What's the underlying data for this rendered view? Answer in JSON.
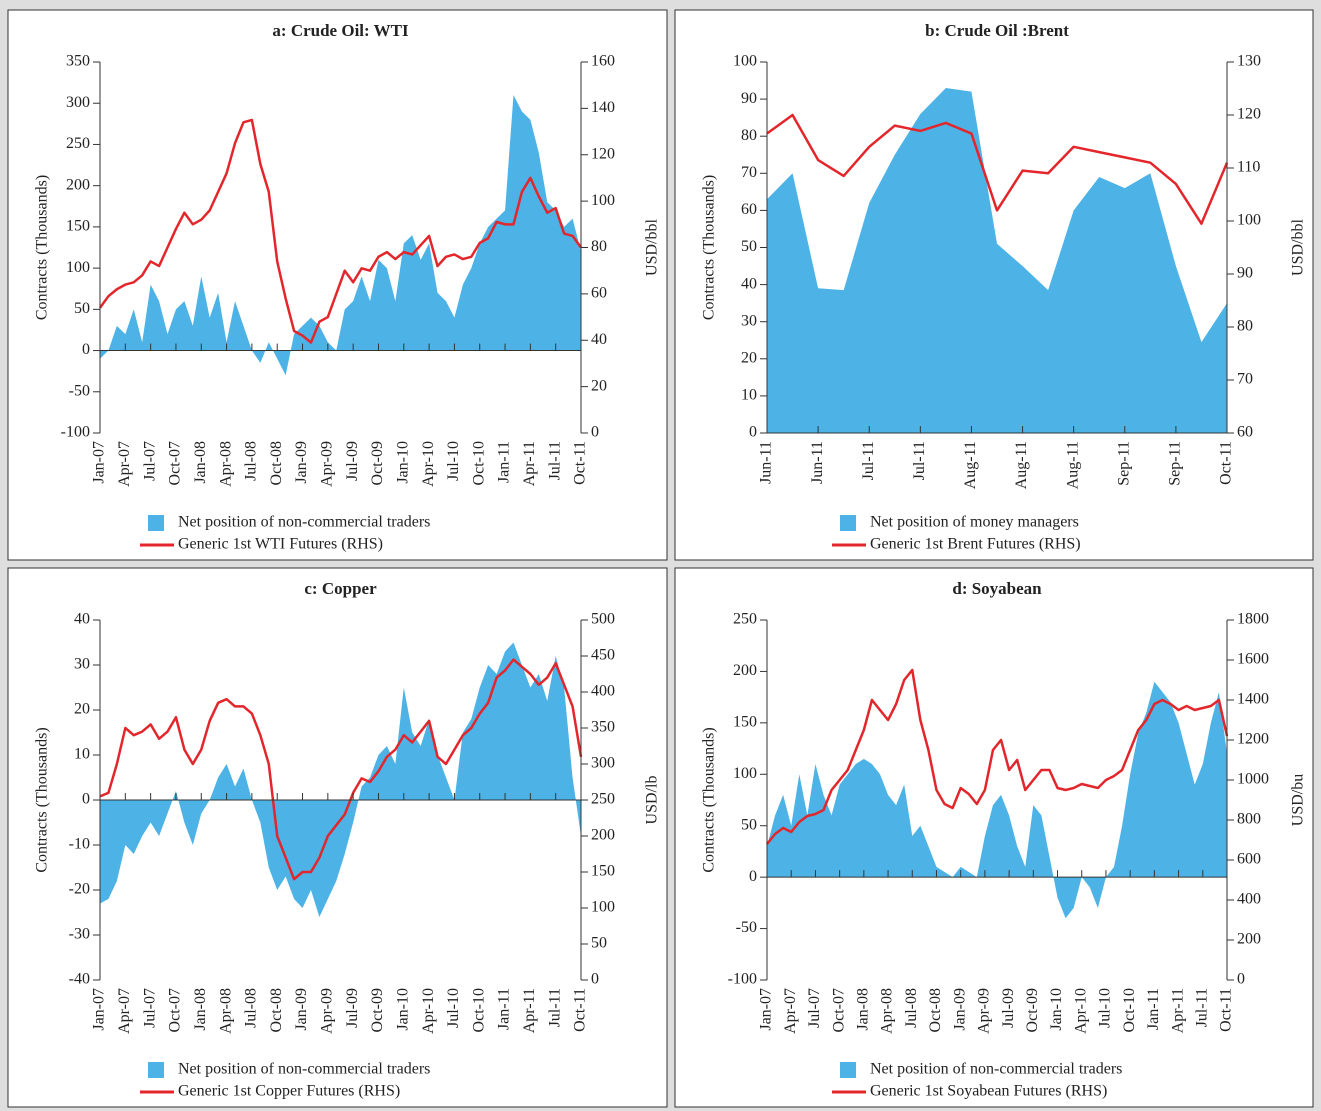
{
  "chart_data": [
    {
      "type": "area",
      "title": "a: Crude Oil: WTI",
      "y_label": "Contracts (Thousands)",
      "y2_label": "USD/bbl",
      "categories": [
        "Jan-07",
        null,
        null,
        "Apr-07",
        null,
        null,
        "Jul-07",
        null,
        null,
        "Oct-07",
        null,
        null,
        "Jan-08",
        null,
        null,
        "Apr-08",
        null,
        null,
        "Jul-08",
        null,
        null,
        "Oct-08",
        null,
        null,
        "Jan-09",
        null,
        null,
        "Apr-09",
        null,
        null,
        "Jul-09",
        null,
        null,
        "Oct-09",
        null,
        null,
        "Jan-10",
        null,
        null,
        "Apr-10",
        null,
        null,
        "Jul-10",
        null,
        null,
        "Oct-10",
        null,
        null,
        "Jan-11",
        null,
        null,
        "Apr-11",
        null,
        null,
        "Jul-11",
        null,
        null,
        "Oct-11"
      ],
      "ylim": [
        -100,
        350
      ],
      "yticks": [
        -100,
        -50,
        0,
        50,
        100,
        150,
        200,
        250,
        300,
        350
      ],
      "y2lim": [
        0,
        160
      ],
      "y2ticks": [
        0,
        20,
        40,
        60,
        80,
        100,
        120,
        140,
        160
      ],
      "series": [
        {
          "name": "Net position of non-commercial traders",
          "color": "#4db3e6",
          "values": [
            -10,
            0,
            30,
            20,
            50,
            10,
            80,
            60,
            20,
            50,
            60,
            30,
            90,
            40,
            70,
            10,
            60,
            30,
            0,
            -15,
            10,
            -10,
            -30,
            20,
            30,
            40,
            30,
            10,
            0,
            50,
            60,
            90,
            60,
            110,
            100,
            60,
            130,
            140,
            110,
            130,
            70,
            60,
            40,
            80,
            100,
            130,
            150,
            160,
            170,
            310,
            290,
            280,
            240,
            180,
            170,
            150,
            160,
            120
          ]
        },
        {
          "name": "Generic 1st WTI Futures (RHS)",
          "color": "#e3262b",
          "axis": "y2",
          "values": [
            54,
            59,
            62,
            64,
            65,
            68,
            74,
            72,
            80,
            88,
            95,
            90,
            92,
            96,
            104,
            112,
            125,
            134,
            135,
            116,
            104,
            74,
            58,
            44,
            42,
            39,
            48,
            50,
            60,
            70,
            65,
            71,
            70,
            76,
            78,
            75,
            78,
            77,
            81,
            85,
            72,
            76,
            77,
            75,
            76,
            82,
            84,
            91,
            90,
            90,
            104,
            110,
            102,
            95,
            97,
            86,
            85,
            80
          ]
        }
      ]
    },
    {
      "type": "area",
      "title": "b: Crude Oil :Brent",
      "y_label": "Contracts (Thousands)",
      "y2_label": "USD/bbl",
      "categories": [
        "Jun-11",
        null,
        "Jun-11",
        null,
        "Jul-11",
        null,
        "Jul-11",
        null,
        "Aug-11",
        null,
        "Aug-11",
        null,
        "Aug-11",
        null,
        "Sep-11",
        null,
        "Sep-11",
        null,
        "Oct-11"
      ],
      "ylim": [
        0,
        100
      ],
      "yticks": [
        0,
        10,
        20,
        30,
        40,
        50,
        60,
        70,
        80,
        90,
        100
      ],
      "y2lim": [
        60,
        130
      ],
      "y2ticks": [
        60,
        70,
        80,
        90,
        100,
        110,
        120,
        130
      ],
      "series": [
        {
          "name": "Net position of money managers",
          "color": "#4db3e6",
          "values": [
            63,
            70,
            39,
            38.5,
            62,
            75,
            86,
            93,
            92,
            51,
            45,
            38.5,
            60,
            69,
            66,
            70,
            45,
            24.5,
            35
          ]
        },
        {
          "name": "Generic 1st Brent Futures (RHS)",
          "color": "#e3262b",
          "axis": "y2",
          "values": [
            116.5,
            120,
            111.5,
            108.5,
            114,
            118,
            117,
            118.5,
            116.5,
            102,
            109.5,
            109,
            114,
            113,
            112,
            111,
            107,
            99.5,
            111
          ]
        }
      ]
    },
    {
      "type": "area",
      "title": "c: Copper",
      "y_label": "Contracts (Thousands)",
      "y2_label": "USD/lb",
      "categories": [
        "Jan-07",
        null,
        null,
        "Apr-07",
        null,
        null,
        "Jul-07",
        null,
        null,
        "Oct-07",
        null,
        null,
        "Jan-08",
        null,
        null,
        "Apr-08",
        null,
        null,
        "Jul-08",
        null,
        null,
        "Oct-08",
        null,
        null,
        "Jan-09",
        null,
        null,
        "Apr-09",
        null,
        null,
        "Jul-09",
        null,
        null,
        "Oct-09",
        null,
        null,
        "Jan-10",
        null,
        null,
        "Apr-10",
        null,
        null,
        "Jul-10",
        null,
        null,
        "Oct-10",
        null,
        null,
        "Jan-11",
        null,
        null,
        "Apr-11",
        null,
        null,
        "Jul-11",
        null,
        null,
        "Oct-11"
      ],
      "ylim": [
        -40,
        40
      ],
      "yticks": [
        -40,
        -30,
        -20,
        -10,
        0,
        10,
        20,
        30,
        40
      ],
      "y2lim": [
        0,
        500
      ],
      "y2ticks": [
        0,
        50,
        100,
        150,
        200,
        250,
        300,
        350,
        400,
        450,
        500
      ],
      "series": [
        {
          "name": "Net position of non-commercial traders",
          "color": "#4db3e6",
          "values": [
            -23,
            -22,
            -18,
            -10,
            -12,
            -8,
            -5,
            -8,
            -3,
            2,
            -5,
            -10,
            -3,
            0,
            5,
            8,
            3,
            7,
            0,
            -5,
            -15,
            -20,
            -17,
            -22,
            -24,
            -20,
            -26,
            -22,
            -18,
            -12,
            -5,
            3,
            5,
            10,
            12,
            8,
            25,
            15,
            12,
            18,
            10,
            5,
            0,
            15,
            18,
            25,
            30,
            28,
            33,
            35,
            30,
            25,
            28,
            22,
            32,
            25,
            5,
            -8
          ]
        },
        {
          "name": "Generic 1st Copper Futures (RHS)",
          "color": "#e3262b",
          "axis": "y2",
          "values": [
            255,
            260,
            300,
            350,
            340,
            345,
            355,
            335,
            345,
            365,
            320,
            300,
            320,
            360,
            385,
            390,
            380,
            380,
            370,
            340,
            300,
            200,
            170,
            140,
            150,
            150,
            170,
            200,
            215,
            230,
            260,
            280,
            275,
            290,
            310,
            320,
            340,
            330,
            345,
            360,
            310,
            300,
            320,
            340,
            350,
            370,
            385,
            420,
            430,
            445,
            435,
            425,
            410,
            420,
            440,
            410,
            380,
            310
          ]
        }
      ]
    },
    {
      "type": "area",
      "title": "d: Soyabean",
      "y_label": "Contracts (Thousands)",
      "y2_label": "USD/bu",
      "categories": [
        "Jan-07",
        null,
        null,
        "Apr-07",
        null,
        null,
        "Jul-07",
        null,
        null,
        "Oct-07",
        null,
        null,
        "Jan-08",
        null,
        null,
        "Apr-08",
        null,
        null,
        "Jul-08",
        null,
        null,
        "Oct-08",
        null,
        null,
        "Jan-09",
        null,
        null,
        "Apr-09",
        null,
        null,
        "Jul-09",
        null,
        null,
        "Oct-09",
        null,
        null,
        "Jan-10",
        null,
        null,
        "Apr-10",
        null,
        null,
        "Jul-10",
        null,
        null,
        "Oct-10",
        null,
        null,
        "Jan-11",
        null,
        null,
        "Apr-11",
        null,
        null,
        "Jul-11",
        null,
        null,
        "Oct-11"
      ],
      "ylim": [
        -100,
        250
      ],
      "yticks": [
        -100,
        -50,
        0,
        50,
        100,
        150,
        200,
        250
      ],
      "y2lim": [
        0,
        1800
      ],
      "y2ticks": [
        0,
        200,
        400,
        600,
        800,
        1000,
        1200,
        1400,
        1600,
        1800
      ],
      "series": [
        {
          "name": "Net position of non-commercial traders",
          "color": "#4db3e6",
          "values": [
            30,
            60,
            80,
            50,
            100,
            60,
            110,
            80,
            60,
            90,
            100,
            110,
            115,
            110,
            100,
            80,
            70,
            90,
            40,
            50,
            30,
            10,
            5,
            0,
            10,
            5,
            0,
            40,
            70,
            80,
            60,
            30,
            10,
            70,
            60,
            20,
            -20,
            -40,
            -30,
            0,
            -10,
            -30,
            0,
            10,
            50,
            100,
            140,
            160,
            190,
            180,
            170,
            150,
            120,
            90,
            110,
            150,
            180,
            120
          ]
        },
        {
          "name": "Generic 1st Soyabean Futures (RHS)",
          "color": "#e3262b",
          "axis": "y2",
          "values": [
            680,
            730,
            760,
            740,
            790,
            820,
            830,
            850,
            950,
            1000,
            1050,
            1150,
            1250,
            1400,
            1350,
            1300,
            1380,
            1500,
            1550,
            1300,
            1150,
            950,
            880,
            860,
            960,
            930,
            880,
            950,
            1150,
            1200,
            1050,
            1100,
            950,
            1000,
            1050,
            1050,
            960,
            950,
            960,
            980,
            970,
            960,
            1000,
            1020,
            1050,
            1150,
            1250,
            1300,
            1380,
            1400,
            1380,
            1350,
            1370,
            1350,
            1360,
            1370,
            1400,
            1220
          ]
        }
      ]
    }
  ]
}
